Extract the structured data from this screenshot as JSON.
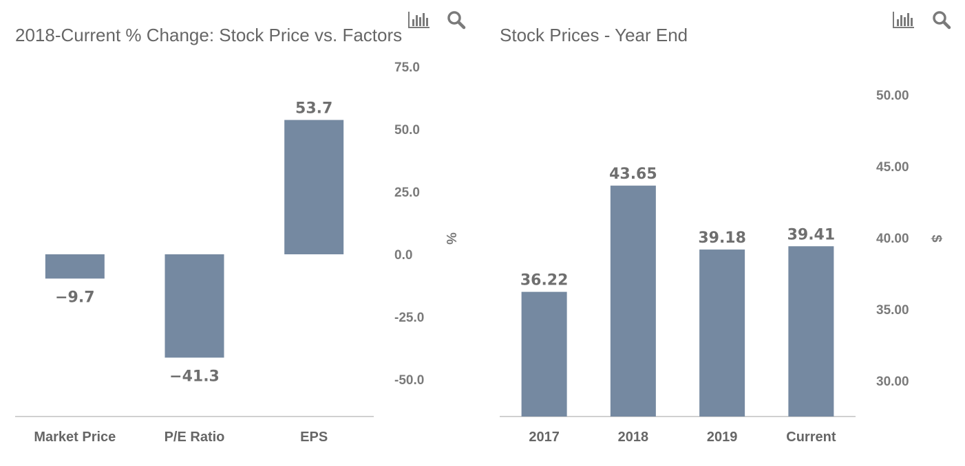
{
  "toolbar": {
    "chart_icon": "bar-chart-icon",
    "search_icon": "magnifier-icon"
  },
  "colors": {
    "bar": "#7589a1",
    "text": "#666666",
    "axis": "#d0d0d0"
  },
  "chart_data": [
    {
      "type": "bar",
      "title": "2018-Current % Change: Stock Price vs. Factors",
      "categories": [
        "Market Price",
        "P/E Ratio",
        "EPS"
      ],
      "values": [
        -9.7,
        -41.3,
        53.7
      ],
      "data_labels": [
        "−9.7",
        "−41.3",
        "53.7"
      ],
      "yticks": [
        "75.0",
        "50.0",
        "25.0",
        "0.0",
        "-25.0",
        "-50.0"
      ],
      "ylabel": "%",
      "ylim": [
        -65,
        75
      ],
      "axis_position": "right",
      "grid": false
    },
    {
      "type": "bar",
      "title": "Stock Prices - Year End",
      "categories": [
        "2017",
        "2018",
        "2019",
        "Current"
      ],
      "values": [
        36.22,
        43.65,
        39.18,
        39.41
      ],
      "data_labels": [
        "36.22",
        "43.65",
        "39.18",
        "39.41"
      ],
      "yticks": [
        "50.00",
        "45.00",
        "40.00",
        "35.00",
        "30.00"
      ],
      "ylabel": "$",
      "ylim": [
        27.5,
        50
      ],
      "axis_position": "right",
      "grid": false
    }
  ]
}
